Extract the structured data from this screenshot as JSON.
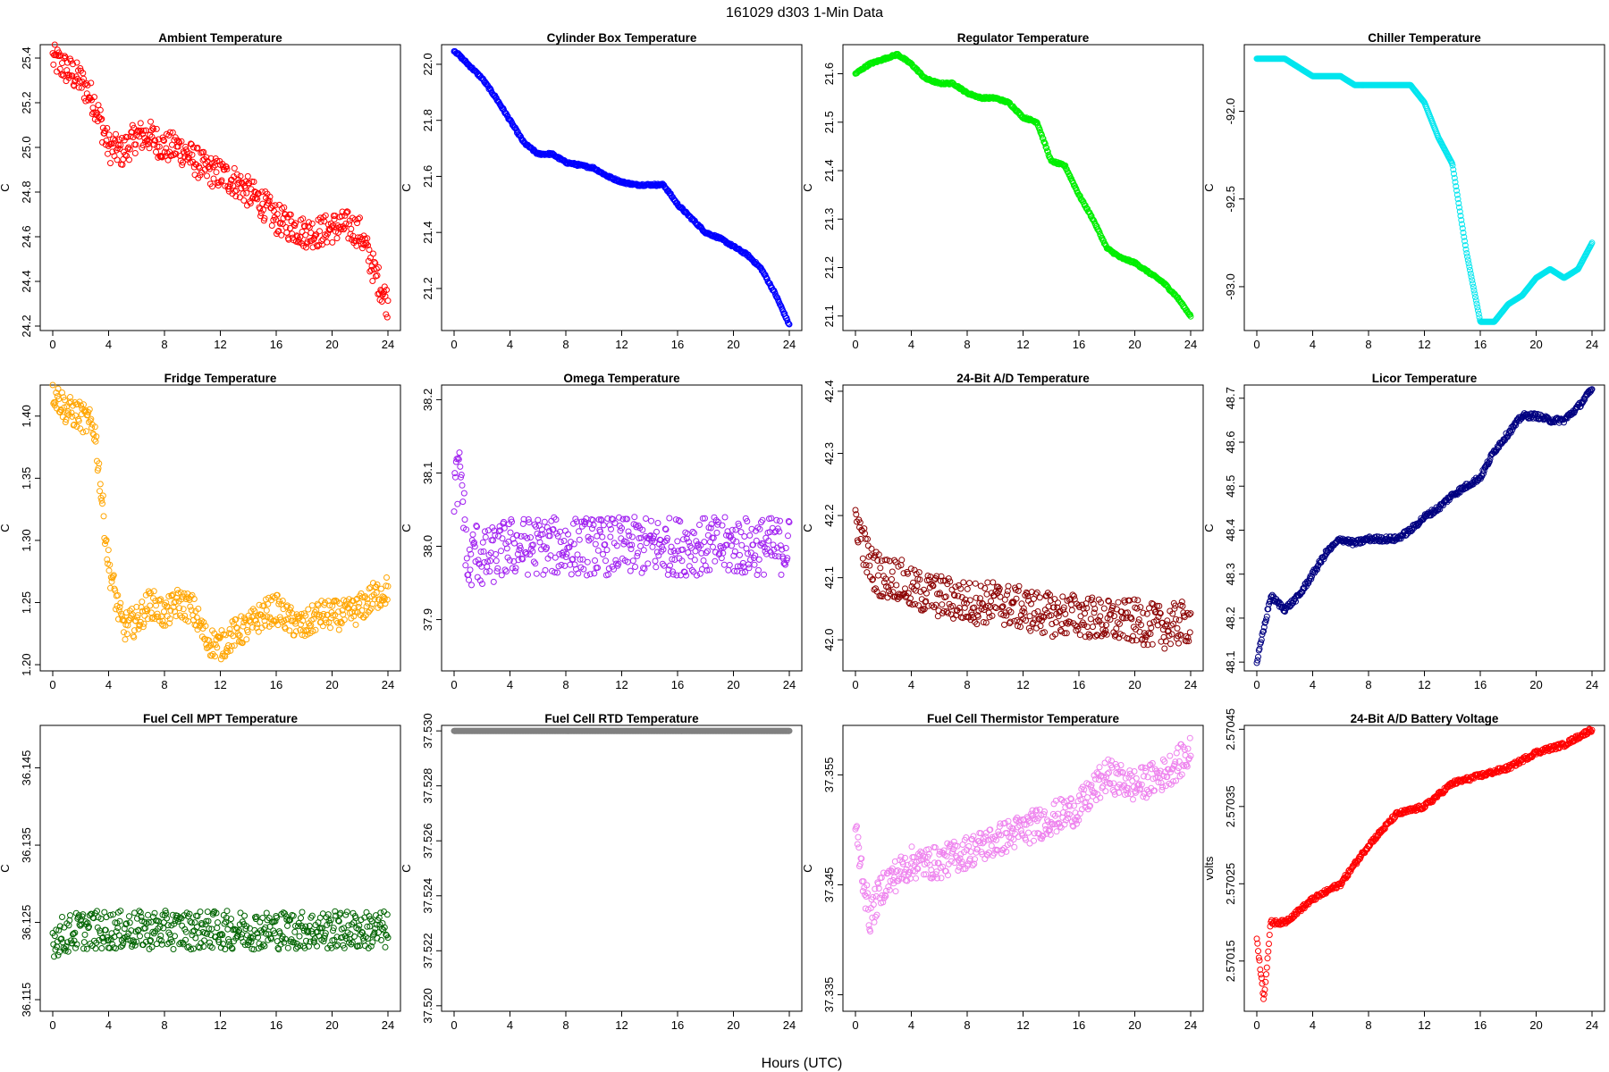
{
  "figure": {
    "title": "161029   d303   1-Min Data",
    "xlabel": "Hours (UTC)"
  },
  "chart_data": [
    {
      "type": "scatter",
      "title": "Ambient Temperature",
      "ylabel": "C",
      "color": "#ff0000",
      "xlim": [
        0,
        24
      ],
      "ylim": [
        24.18,
        25.46
      ],
      "xticks": [
        "0",
        "4",
        "8",
        "12",
        "16",
        "20",
        "24"
      ],
      "yticks": [
        "24.2",
        "24.4",
        "24.6",
        "24.8",
        "25.0",
        "25.2",
        "25.4"
      ],
      "series": [
        {
          "x": [
            0,
            1,
            2,
            3,
            4,
            5,
            6,
            7,
            8,
            9,
            10,
            11,
            12,
            13,
            14,
            15,
            16,
            17,
            18,
            19,
            20,
            21,
            22,
            23,
            24
          ],
          "y": [
            25.4,
            25.35,
            25.3,
            25.2,
            25.0,
            24.98,
            25.05,
            25.05,
            25.0,
            25.0,
            24.95,
            24.9,
            24.88,
            24.85,
            24.8,
            24.75,
            24.68,
            24.65,
            24.62,
            24.62,
            24.64,
            24.65,
            24.62,
            24.45,
            24.3
          ],
          "noise": 0.07
        }
      ]
    },
    {
      "type": "scatter",
      "title": "Cylinder Box Temperature",
      "ylabel": "C",
      "color": "#0000ff",
      "xlim": [
        0,
        24
      ],
      "ylim": [
        21.05,
        22.07
      ],
      "xticks": [
        "0",
        "4",
        "8",
        "12",
        "16",
        "20",
        "24"
      ],
      "yticks": [
        "21.2",
        "21.4",
        "21.6",
        "21.8",
        "22.0"
      ],
      "series": [
        {
          "x": [
            0,
            1,
            2,
            3,
            4,
            5,
            6,
            7,
            8,
            9,
            10,
            11,
            12,
            13,
            14,
            15,
            16,
            17,
            18,
            19,
            20,
            21,
            22,
            23,
            24
          ],
          "y": [
            22.05,
            22.0,
            21.95,
            21.88,
            21.8,
            21.72,
            21.68,
            21.68,
            21.65,
            21.64,
            21.63,
            21.6,
            21.58,
            21.57,
            21.57,
            21.57,
            21.5,
            21.45,
            21.4,
            21.38,
            21.35,
            21.32,
            21.27,
            21.18,
            21.07
          ],
          "noise": 0.004
        }
      ]
    },
    {
      "type": "scatter",
      "title": "Regulator Temperature",
      "ylabel": "C",
      "color": "#00ee00",
      "xlim": [
        0,
        24
      ],
      "ylim": [
        21.07,
        21.66
      ],
      "xticks": [
        "0",
        "4",
        "8",
        "12",
        "16",
        "20",
        "24"
      ],
      "yticks": [
        "21.1",
        "21.2",
        "21.3",
        "21.4",
        "21.5",
        "21.6"
      ],
      "series": [
        {
          "x": [
            0,
            1,
            2,
            3,
            4,
            5,
            6,
            7,
            8,
            9,
            10,
            11,
            12,
            13,
            14,
            15,
            16,
            17,
            18,
            19,
            20,
            21,
            22,
            23,
            24
          ],
          "y": [
            21.6,
            21.62,
            21.63,
            21.64,
            21.62,
            21.59,
            21.58,
            21.58,
            21.56,
            21.55,
            21.55,
            21.54,
            21.51,
            21.5,
            21.42,
            21.41,
            21.35,
            21.3,
            21.24,
            21.22,
            21.21,
            21.19,
            21.17,
            21.14,
            21.1
          ],
          "noise": 0.002
        }
      ]
    },
    {
      "type": "scatter",
      "title": "Chiller Temperature",
      "ylabel": "C",
      "color": "#00e5ee",
      "xlim": [
        0,
        24
      ],
      "ylim": [
        -93.25,
        -91.62
      ],
      "xticks": [
        "0",
        "4",
        "8",
        "12",
        "16",
        "20",
        "24"
      ],
      "yticks": [
        "-92.0",
        "-92.5",
        "-93.0"
      ],
      "series": [
        {
          "x": [
            0,
            1,
            2,
            3,
            4,
            5,
            6,
            7,
            8,
            9,
            10,
            11,
            12,
            13,
            14,
            15,
            16,
            17,
            18,
            19,
            20,
            21,
            22,
            23,
            24
          ],
          "y": [
            -91.7,
            -91.7,
            -91.7,
            -91.75,
            -91.8,
            -91.8,
            -91.8,
            -91.85,
            -91.85,
            -91.85,
            -91.85,
            -91.85,
            -91.95,
            -92.15,
            -92.3,
            -92.8,
            -93.2,
            -93.2,
            -93.1,
            -93.05,
            -92.95,
            -92.9,
            -92.95,
            -92.9,
            -92.75
          ],
          "noise": 0
        }
      ]
    },
    {
      "type": "scatter",
      "title": "Fridge Temperature",
      "ylabel": "C",
      "color": "#ffa500",
      "xlim": [
        0,
        24
      ],
      "ylim": [
        1.195,
        1.425
      ],
      "xticks": [
        "0",
        "4",
        "8",
        "12",
        "16",
        "20",
        "24"
      ],
      "yticks": [
        "1.20",
        "1.25",
        "1.30",
        "1.35",
        "1.40"
      ],
      "series": [
        {
          "x": [
            0,
            1,
            2,
            3,
            4,
            5,
            6,
            7,
            8,
            9,
            10,
            11,
            12,
            13,
            14,
            15,
            16,
            17,
            18,
            19,
            20,
            21,
            22,
            23,
            24
          ],
          "y": [
            1.42,
            1.405,
            1.4,
            1.39,
            1.28,
            1.23,
            1.235,
            1.25,
            1.24,
            1.25,
            1.245,
            1.22,
            1.215,
            1.225,
            1.23,
            1.24,
            1.245,
            1.235,
            1.23,
            1.24,
            1.24,
            1.24,
            1.245,
            1.255,
            1.26
          ],
          "noise": 0.012
        }
      ]
    },
    {
      "type": "scatter",
      "title": "Omega Temperature",
      "ylabel": "C",
      "color": "#a020f0",
      "xlim": [
        0,
        24
      ],
      "ylim": [
        37.83,
        38.22
      ],
      "xticks": [
        "0",
        "4",
        "8",
        "12",
        "16",
        "20",
        "24"
      ],
      "yticks": [
        "37.9",
        "38.0",
        "38.1",
        "38.2"
      ],
      "series": [
        {
          "x": [
            0,
            0.5,
            1,
            1.5,
            2,
            3,
            4,
            5,
            6,
            8,
            10,
            12,
            14,
            16,
            18,
            20,
            22,
            24
          ],
          "y": [
            38.08,
            38.1,
            37.96,
            38.0,
            37.98,
            37.99,
            38.0,
            38.0,
            38.0,
            38.0,
            38.0,
            38.0,
            38.0,
            38.0,
            38.0,
            38.0,
            38.0,
            38.0
          ],
          "noise": 0.04
        }
      ]
    },
    {
      "type": "scatter",
      "title": "24-Bit A/D Temperature",
      "ylabel": "C",
      "color": "#8b0000",
      "xlim": [
        0,
        24
      ],
      "ylim": [
        41.95,
        42.41
      ],
      "xticks": [
        "0",
        "4",
        "8",
        "12",
        "16",
        "20",
        "24"
      ],
      "yticks": [
        "42.0",
        "42.1",
        "42.2",
        "42.3",
        "42.4"
      ],
      "series": [
        {
          "x": [
            0,
            1,
            2,
            3,
            4,
            6,
            8,
            10,
            12,
            14,
            16,
            18,
            20,
            22,
            24
          ],
          "y": [
            42.2,
            42.12,
            42.1,
            42.1,
            42.08,
            42.07,
            42.06,
            42.06,
            42.05,
            42.04,
            42.04,
            42.03,
            42.03,
            42.02,
            42.03
          ],
          "noise": 0.035
        }
      ]
    },
    {
      "type": "scatter",
      "title": "Licor Temperature",
      "ylabel": "C",
      "color": "#000080",
      "xlim": [
        0,
        24
      ],
      "ylim": [
        48.08,
        48.73
      ],
      "xticks": [
        "0",
        "4",
        "8",
        "12",
        "16",
        "20",
        "24"
      ],
      "yticks": [
        "48.1",
        "48.2",
        "48.3",
        "48.4",
        "48.5",
        "48.6",
        "48.7"
      ],
      "series": [
        {
          "x": [
            0,
            1,
            2,
            3,
            4,
            5,
            6,
            7,
            8,
            9,
            10,
            11,
            12,
            13,
            14,
            15,
            16,
            17,
            18,
            19,
            20,
            21,
            22,
            23,
            24
          ],
          "y": [
            48.1,
            48.25,
            48.22,
            48.25,
            48.3,
            48.35,
            48.38,
            48.37,
            48.38,
            48.38,
            48.38,
            48.4,
            48.43,
            48.45,
            48.48,
            48.5,
            48.52,
            48.58,
            48.62,
            48.66,
            48.66,
            48.65,
            48.65,
            48.68,
            48.72
          ],
          "noise": 0.006
        }
      ]
    },
    {
      "type": "scatter",
      "title": "Fuel Cell MPT Temperature",
      "ylabel": "C",
      "color": "#006400",
      "xlim": [
        0,
        24
      ],
      "ylim": [
        36.1135,
        36.1505
      ],
      "xticks": [
        "0",
        "4",
        "8",
        "12",
        "16",
        "20",
        "24"
      ],
      "yticks": [
        "36.115",
        "36.125",
        "36.135",
        "36.145"
      ],
      "series": [
        {
          "x": [
            0,
            2,
            4,
            6,
            8,
            10,
            12,
            14,
            16,
            18,
            20,
            22,
            24
          ],
          "y": [
            36.123,
            36.124,
            36.124,
            36.124,
            36.124,
            36.124,
            36.124,
            36.124,
            36.124,
            36.124,
            36.124,
            36.124,
            36.124
          ],
          "noise": 0.0025
        }
      ]
    },
    {
      "type": "scatter",
      "title": "Fuel Cell RTD Temperature",
      "ylabel": "C",
      "color": "#808080",
      "xlim": [
        0,
        24
      ],
      "ylim": [
        37.5198,
        37.5302
      ],
      "xticks": [
        "0",
        "4",
        "8",
        "12",
        "16",
        "20",
        "24"
      ],
      "yticks": [
        "37.520",
        "37.522",
        "37.524",
        "37.526",
        "37.528",
        "37.530"
      ],
      "series": [
        {
          "x": [
            0,
            24
          ],
          "y": [
            37.53,
            37.53
          ],
          "noise": 0
        }
      ]
    },
    {
      "type": "scatter",
      "title": "Fuel Cell Thermistor Temperature",
      "ylabel": "C",
      "color": "#ee82ee",
      "xlim": [
        0,
        24
      ],
      "ylim": [
        37.3335,
        37.3595
      ],
      "xticks": [
        "0",
        "4",
        "8",
        "12",
        "16",
        "20",
        "24"
      ],
      "yticks": [
        "37.335",
        "37.345",
        "37.355"
      ],
      "series": [
        {
          "x": [
            0,
            1,
            2,
            4,
            6,
            8,
            10,
            12,
            14,
            16,
            18,
            20,
            22,
            24
          ],
          "y": [
            37.35,
            37.342,
            37.345,
            37.347,
            37.347,
            37.348,
            37.349,
            37.35,
            37.351,
            37.352,
            37.355,
            37.354,
            37.355,
            37.357
          ],
          "noise": 0.0015
        }
      ]
    },
    {
      "type": "scatter",
      "title": "24-Bit A/D Battery Voltage",
      "ylabel": "volts",
      "color": "#ff0000",
      "xlim": [
        0,
        24
      ],
      "ylim": [
        2.570085,
        2.570455
      ],
      "xticks": [
        "0",
        "4",
        "8",
        "12",
        "16",
        "20",
        "24"
      ],
      "yticks": [
        "2.57015",
        "2.57025",
        "2.57035",
        "2.57045"
      ],
      "series": [
        {
          "x": [
            0,
            0.5,
            1,
            2,
            4,
            6,
            8,
            10,
            12,
            14,
            16,
            18,
            20,
            22,
            24
          ],
          "y": [
            2.57018,
            2.5701,
            2.5702,
            2.5702,
            2.57023,
            2.57025,
            2.5703,
            2.57034,
            2.57035,
            2.57038,
            2.57039,
            2.5704,
            2.57042,
            2.57043,
            2.57045
          ],
          "noise": 3e-06
        }
      ]
    }
  ]
}
